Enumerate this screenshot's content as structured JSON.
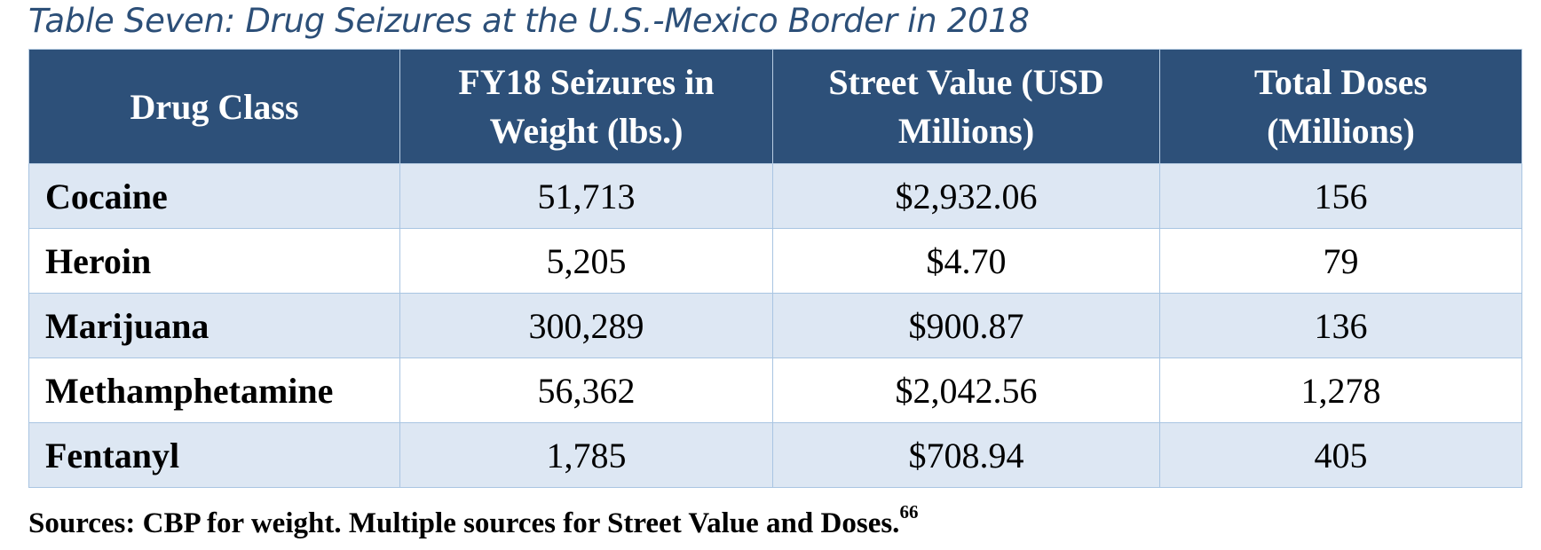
{
  "caption": "Table Seven: Drug Seizures at the U.S.-Mexico Border in 2018",
  "table": {
    "headers": [
      {
        "lines": [
          "Drug Class"
        ]
      },
      {
        "lines": [
          "FY18 Seizures in",
          "Weight (lbs.)"
        ]
      },
      {
        "lines": [
          "Street Value (USD",
          "Millions)"
        ]
      },
      {
        "lines": [
          "Total Doses",
          "(Millions)"
        ]
      }
    ],
    "rows": [
      {
        "drug": "Cocaine",
        "weight": "51,713",
        "value": "$2,932.06",
        "doses": "156"
      },
      {
        "drug": "Heroin",
        "weight": "5,205",
        "value": "$4.70",
        "doses": "79"
      },
      {
        "drug": "Marijuana",
        "weight": "300,289",
        "value": "$900.87",
        "doses": "136"
      },
      {
        "drug": "Methamphetamine",
        "weight": "56,362",
        "value": "$2,042.56",
        "doses": "1,278"
      },
      {
        "drug": "Fentanyl",
        "weight": "1,785",
        "value": "$708.94",
        "doses": "405"
      }
    ]
  },
  "source": {
    "text": "Sources: CBP for weight. Multiple sources for Street Value and Doses.",
    "footnote": "66"
  },
  "colors": {
    "caption": "#2c4f78",
    "header_bg": "#2d5079",
    "header_text": "#ffffff",
    "row_shade": "#dde7f3",
    "row_plain": "#ffffff",
    "grid": "#a9c5e2"
  }
}
